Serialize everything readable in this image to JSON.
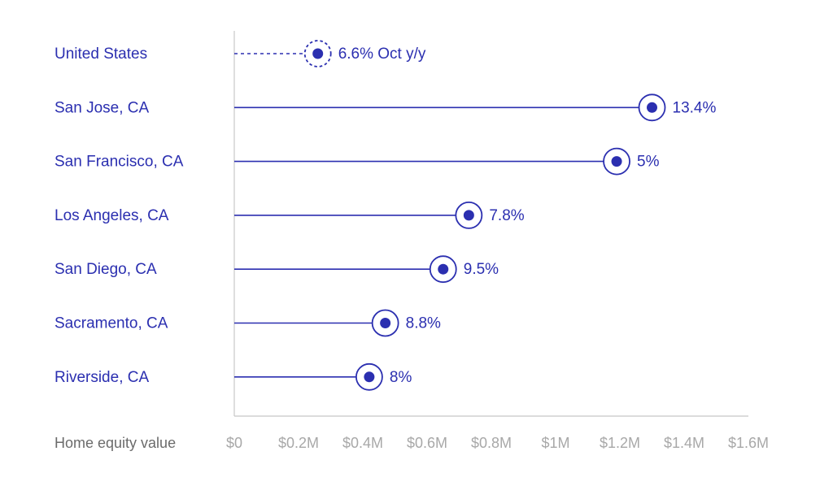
{
  "colors": {
    "accent": "#2b2fb0",
    "axis": "#c8c8c8",
    "label_muted": "#6b6b6b",
    "tick_muted": "#a8a8a8",
    "background": "#ffffff"
  },
  "chart_data": {
    "type": "lollipop",
    "title": "",
    "xlabel": "Home equity value",
    "ylabel": "",
    "xlim": [
      0,
      1.6
    ],
    "x_unit": "$M",
    "x_ticks": [
      "$0",
      "$0.2M",
      "$0.4M",
      "$0.6M",
      "$0.8M",
      "$1M",
      "$1.2M",
      "$1.4M",
      "$1.6M"
    ],
    "x_tick_values": [
      0,
      0.2,
      0.4,
      0.6,
      0.8,
      1.0,
      1.2,
      1.4,
      1.6
    ],
    "grid": false,
    "legend": "none",
    "categories": [
      "United States",
      "San Jose, CA",
      "San Francisco, CA",
      "Los Angeles, CA",
      "San Diego, CA",
      "Sacramento, CA",
      "Riverside, CA"
    ],
    "values": [
      0.26,
      1.3,
      1.19,
      0.73,
      0.65,
      0.47,
      0.42
    ],
    "data_labels": [
      "6.6% Oct y/y",
      "13.4%",
      "5%",
      "7.8%",
      "9.5%",
      "8.8%",
      "8%"
    ],
    "dashed": [
      true,
      false,
      false,
      false,
      false,
      false,
      false
    ]
  }
}
